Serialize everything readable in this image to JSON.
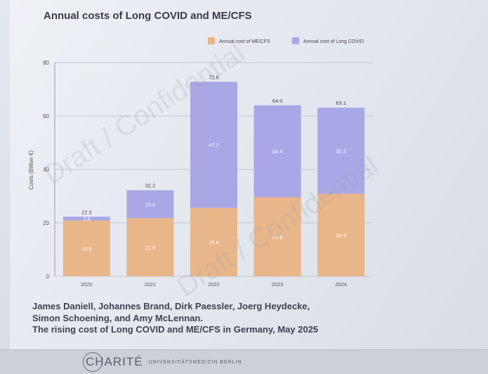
{
  "chart_data": {
    "type": "bar",
    "stacked": true,
    "title": "Annual costs of Long COVID and ME/CFS",
    "ylabel": "Costs (Billion €)",
    "xlabel": "",
    "ylim": [
      0,
      80
    ],
    "yticks": [
      0,
      20,
      40,
      60,
      80
    ],
    "categories": [
      "2020",
      "2021",
      "2022",
      "2023",
      "2024"
    ],
    "series": [
      {
        "name": "Annual cost of ME/CFS",
        "color": "#e8b689",
        "values": [
          20.9,
          21.8,
          25.6,
          29.6,
          30.9
        ],
        "labels": [
          "20.9",
          "21.8",
          "25.6",
          "29.6",
          "30.9"
        ]
      },
      {
        "name": "Annual cost of Long COVID",
        "color": "#a9a7e6",
        "values": [
          1.4,
          10.4,
          47.2,
          34.4,
          32.2
        ],
        "labels": [
          "1.4",
          "10.4",
          "47.2",
          "34.4",
          "32.2"
        ]
      }
    ],
    "totals": [
      "22.3",
      "32.2",
      "72.8",
      "64.0",
      "63.1"
    ],
    "legend": "top-right",
    "grid": "horizontal"
  },
  "watermarks": [
    "Draft / Confidential",
    "Draft / Confidential"
  ],
  "citation": {
    "authors_line1": "James Daniell, Johannes Brand, Dirk Paessler, Joerg Heydecke,",
    "authors_line2": "Simon Schoening, and Amy McLennan.",
    "reference": "The rising cost of Long COVID and ME/CFS in Germany, May 2025"
  },
  "footer": {
    "logo_mark": "CHARITÉ",
    "logo_sub": "UNIVERSITÄTSMEDIZIN BERLIN"
  }
}
